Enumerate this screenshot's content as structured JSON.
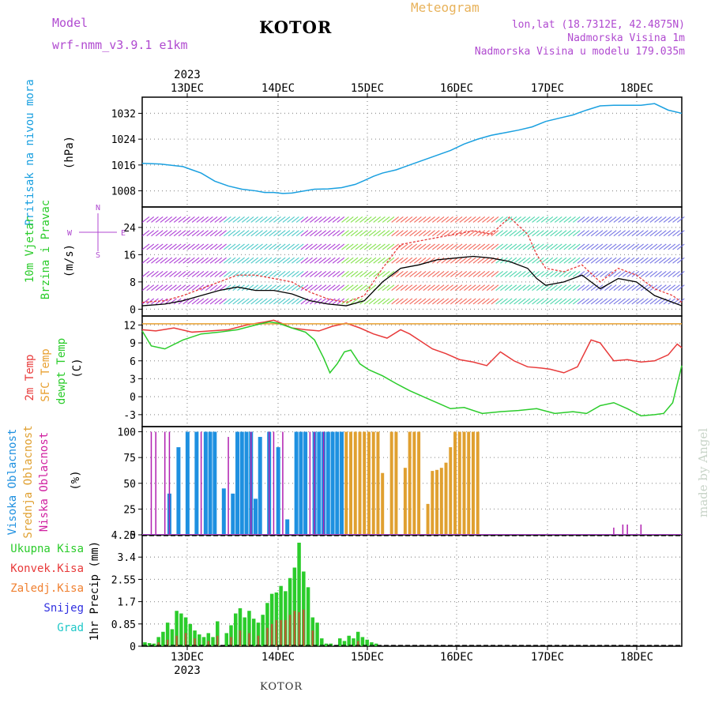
{
  "header": {
    "title": "KOTOR",
    "model_label": "Model",
    "model_name": "wrf-nmm_v3.9.1 e1km",
    "chart_name": "Meteogram",
    "lonlat": "lon,lat (18.7312E, 42.4875N)",
    "elevation": "Nadmorska Visina 1m",
    "model_elevation": "Nadmorska Visina u modelu 179.035m"
  },
  "footer": {
    "location": "KOTOR",
    "credit": "made by Angel"
  },
  "colors": {
    "pressure": "#1aa0e0",
    "temp2m": "#e83a3a",
    "sfc_temp": "#e8a030",
    "dewpt": "#2bcc2b",
    "high_cloud": "#1e90e0",
    "mid_cloud": "#e0a030",
    "low_cloud": "#b020b0",
    "total_precip": "#2bcc2b",
    "conv_precip": "#e83a3a",
    "frz_precip": "#f08030",
    "snow": "#3030e0",
    "hail": "#20c8c8",
    "wind_line": "#000000",
    "gust_line": "#e83a3a"
  },
  "chart_data": [
    {
      "type": "line",
      "panel": "pressure",
      "ylabel": [
        "Pritisak na nivou mora",
        "(hPa)"
      ],
      "yticks": [
        1008,
        1016,
        1024,
        1032
      ],
      "ylim": [
        1003,
        1037
      ],
      "xlim": [
        -0.45,
        5.5
      ],
      "x_top_labels": [
        "13DEC",
        "14DEC",
        "15DEC",
        "16DEC",
        "17DEC",
        "18DEC"
      ],
      "x_top_year": "2023",
      "grid": true,
      "series": [
        {
          "x": [
            -0.45,
            -0.25,
            0,
            0.1,
            0.2,
            0.35,
            0.5,
            0.65,
            0.8,
            0.9,
            1.0,
            1.1,
            1.2,
            1.3,
            1.45,
            1.6,
            1.75,
            1.9,
            2.0,
            2.1,
            2.2,
            2.35,
            2.5,
            2.65,
            2.8,
            2.95,
            3.1,
            3.25,
            3.4,
            3.55,
            3.7,
            3.85,
            4.0,
            4.15,
            4.3,
            4.45,
            4.6,
            4.75,
            4.9,
            5.05,
            5.2,
            5.35,
            5.5
          ],
          "values": [
            1016.5,
            1016.3,
            1015.5,
            1014.5,
            1013.5,
            1011,
            1009.5,
            1008.5,
            1008,
            1007.5,
            1007.5,
            1007.2,
            1007.3,
            1007.8,
            1008.5,
            1008.6,
            1009,
            1010,
            1011.2,
            1012.5,
            1013.5,
            1014.5,
            1016,
            1017.5,
            1019,
            1020.5,
            1022.5,
            1024,
            1025.2,
            1026,
            1026.8,
            1027.8,
            1029.5,
            1030.5,
            1031.5,
            1033,
            1034.3,
            1034.5,
            1034.5,
            1034.5,
            1035,
            1033,
            1032
          ]
        }
      ]
    },
    {
      "type": "line",
      "panel": "wind",
      "ylabel": [
        "10m Vjetar",
        "Brzina i Pravac",
        "(m/s)"
      ],
      "direction_legend": [
        "N",
        "W",
        "E",
        "S"
      ],
      "yticks": [
        0,
        8,
        16,
        24
      ],
      "ylim": [
        -2,
        30
      ],
      "xlim": [
        -0.45,
        5.5
      ],
      "grid": true,
      "series": [
        {
          "name": "wind speed",
          "x": [
            -0.45,
            -0.2,
            0,
            0.2,
            0.4,
            0.6,
            0.8,
            1.0,
            1.2,
            1.4,
            1.6,
            1.8,
            2.0,
            2.2,
            2.4,
            2.6,
            2.8,
            3.0,
            3.2,
            3.4,
            3.6,
            3.8,
            3.9,
            4.0,
            4.2,
            4.4,
            4.6,
            4.8,
            5.0,
            5.2,
            5.4,
            5.5
          ],
          "values": [
            1,
            1.5,
            2.5,
            4,
            5.5,
            6.5,
            5.5,
            5.5,
            4.5,
            2.5,
            1.5,
            1,
            2.5,
            8,
            12,
            13,
            14.5,
            15,
            15.5,
            15,
            14,
            12,
            9,
            7,
            8,
            10,
            6,
            9,
            8,
            4,
            2,
            1
          ]
        },
        {
          "name": "wind gust",
          "x": [
            -0.45,
            -0.2,
            0,
            0.2,
            0.4,
            0.6,
            0.8,
            1.0,
            1.2,
            1.4,
            1.6,
            1.8,
            2.0,
            2.2,
            2.4,
            2.6,
            2.8,
            3.0,
            3.2,
            3.4,
            3.6,
            3.8,
            3.9,
            4.0,
            4.2,
            4.4,
            4.6,
            4.8,
            5.0,
            5.2,
            5.4,
            5.5
          ],
          "values": [
            2,
            2.5,
            4,
            6,
            8,
            10,
            10,
            9,
            8,
            5,
            3,
            2,
            4,
            12,
            19,
            20,
            21,
            22,
            23,
            22,
            27,
            22,
            16,
            12,
            11,
            13,
            8,
            12,
            10,
            6,
            4,
            2
          ]
        }
      ]
    },
    {
      "type": "line",
      "panel": "temperature",
      "ylabel": [
        "2m Temp",
        "SFC Temp",
        "dewpt Temp",
        "(C)"
      ],
      "yticks": [
        -3,
        0,
        3,
        6,
        9,
        12
      ],
      "ylim": [
        -5,
        13.5
      ],
      "xlim": [
        -0.45,
        5.5
      ],
      "grid": true,
      "series": [
        {
          "name": "2m Temp",
          "x": [
            -0.45,
            -0.3,
            -0.1,
            0.1,
            0.3,
            0.5,
            0.7,
            0.9,
            1.0,
            1.1,
            1.2,
            1.35,
            1.5,
            1.65,
            1.8,
            1.95,
            2.1,
            2.25,
            2.4,
            2.5,
            2.6,
            2.75,
            2.9,
            3.05,
            3.2,
            3.35,
            3.5,
            3.65,
            3.8,
            3.95,
            4.05,
            4.2,
            4.35,
            4.5,
            4.6,
            4.75,
            4.9,
            5.05,
            5.2,
            5.35,
            5.45,
            5.5
          ],
          "values": [
            11.2,
            11.0,
            11.5,
            10.8,
            11.0,
            11.2,
            12.0,
            12.5,
            12.8,
            12.2,
            11.5,
            11.2,
            11.0,
            11.8,
            12.3,
            11.5,
            10.5,
            9.8,
            11.2,
            10.5,
            9.5,
            8.0,
            7.2,
            6.2,
            5.8,
            5.2,
            7.5,
            6.0,
            5.0,
            4.8,
            4.6,
            4.0,
            5.0,
            9.5,
            9.0,
            6.0,
            6.2,
            5.8,
            6.0,
            7.0,
            8.8,
            8.2
          ]
        },
        {
          "name": "SFC Temp",
          "x": [
            -0.45,
            5.5
          ],
          "values": [
            12.2,
            12.2
          ]
        },
        {
          "name": "dewpt Temp",
          "x": [
            -0.45,
            -0.35,
            -0.2,
            0,
            0.2,
            0.4,
            0.6,
            0.8,
            0.95,
            1.05,
            1.2,
            1.35,
            1.45,
            1.55,
            1.62,
            1.7,
            1.78,
            1.85,
            1.95,
            2.05,
            2.2,
            2.35,
            2.5,
            2.65,
            2.8,
            2.95,
            3.1,
            3.3,
            3.5,
            3.7,
            3.9,
            4.1,
            4.3,
            4.45,
            4.6,
            4.75,
            4.9,
            5.05,
            5.2,
            5.3,
            5.4,
            5.5
          ],
          "values": [
            11.0,
            8.5,
            8.0,
            9.5,
            10.5,
            10.8,
            11.2,
            12.0,
            12.5,
            12.3,
            11.5,
            10.8,
            9.5,
            6.5,
            4.0,
            5.5,
            7.5,
            7.8,
            5.5,
            4.5,
            3.5,
            2.2,
            1.0,
            0.0,
            -1.0,
            -2.0,
            -1.8,
            -2.8,
            -2.5,
            -2.3,
            -2.0,
            -2.8,
            -2.5,
            -2.8,
            -1.5,
            -1.0,
            -2.0,
            -3.2,
            -3.0,
            -2.8,
            -1.0,
            5.2
          ]
        }
      ]
    },
    {
      "type": "bar",
      "panel": "cloud",
      "ylabel": [
        "Visoka Oblacnost",
        "Srednja Oblacnost",
        "Niska Oblacnost",
        "(%)"
      ],
      "yticks": [
        0,
        25,
        50,
        75,
        100
      ],
      "ylim": [
        0,
        105
      ],
      "xlim": [
        -0.45,
        5.5
      ],
      "grid": true,
      "series": [
        {
          "name": "Visoka Oblacnost",
          "x": [
            -0.15,
            -0.05,
            0.05,
            0.15,
            0.25,
            0.3,
            0.35,
            0.45,
            0.55,
            0.6,
            0.65,
            0.7,
            0.75,
            0.8,
            0.85,
            0.95,
            1.05,
            1.15,
            1.25,
            1.3,
            1.35,
            1.45,
            1.5,
            1.55,
            1.6,
            1.65,
            1.7,
            1.75
          ],
          "values": [
            40,
            85,
            100,
            100,
            100,
            100,
            100,
            45,
            40,
            100,
            100,
            100,
            100,
            35,
            95,
            100,
            85,
            15,
            100,
            100,
            100,
            100,
            100,
            100,
            100,
            100,
            100,
            100
          ]
        },
        {
          "name": "Srednja Oblacnost",
          "x": [
            1.8,
            1.85,
            1.9,
            1.95,
            2.0,
            2.05,
            2.1,
            2.15,
            2.2,
            2.3,
            2.35,
            2.45,
            2.5,
            2.55,
            2.6,
            2.7,
            2.75,
            2.8,
            2.85,
            2.9,
            2.95,
            3.0,
            3.05,
            3.1,
            3.15,
            3.2,
            3.25
          ],
          "values": [
            100,
            100,
            100,
            100,
            100,
            100,
            100,
            100,
            60,
            100,
            100,
            65,
            100,
            100,
            100,
            30,
            62,
            63,
            65,
            70,
            85,
            100,
            100,
            100,
            100,
            100,
            100
          ]
        },
        {
          "name": "Niska Oblacnost",
          "x": [
            -0.35,
            -0.3,
            -0.2,
            -0.15,
            0.2,
            0.5,
            0.75,
            0.95,
            1.0,
            1.1,
            1.4,
            1.45,
            1.55,
            4.75,
            4.85,
            4.9,
            5.05
          ],
          "values": [
            100,
            100,
            100,
            100,
            100,
            95,
            100,
            100,
            100,
            100,
            100,
            100,
            100,
            7,
            10,
            10,
            10
          ]
        }
      ]
    },
    {
      "type": "bar",
      "panel": "precipitation",
      "ylabel": [
        "1hr Precip (mm)"
      ],
      "legend": [
        "Ukupna Kisa",
        "Konvek.Kisa",
        "Zaledj.Kisa",
        "Snijeg",
        "Grad"
      ],
      "yticks": [
        0,
        0.85,
        1.7,
        2.55,
        3.4,
        4.25
      ],
      "ylim": [
        0,
        4.25
      ],
      "xlim": [
        -0.45,
        5.5
      ],
      "x_bottom_labels": [
        "13DEC",
        "14DEC",
        "15DEC",
        "16DEC",
        "17DEC",
        "18DEC"
      ],
      "x_bottom_year": "2023",
      "grid": true,
      "series": [
        {
          "name": "Ukupna Kisa",
          "x": [
            -0.42,
            -0.37,
            -0.32,
            -0.27,
            -0.22,
            -0.17,
            -0.12,
            -0.07,
            -0.02,
            0.03,
            0.08,
            0.13,
            0.18,
            0.23,
            0.28,
            0.33,
            0.38,
            0.48,
            0.53,
            0.58,
            0.63,
            0.68,
            0.73,
            0.78,
            0.83,
            0.88,
            0.93,
            0.98,
            1.03,
            1.08,
            1.13,
            1.18,
            1.23,
            1.28,
            1.33,
            1.38,
            1.43,
            1.48,
            1.53,
            1.58,
            1.63,
            1.73,
            1.78,
            1.83,
            1.88,
            1.93,
            1.98,
            2.03,
            2.08,
            2.13
          ],
          "values": [
            0.15,
            0.12,
            0.1,
            0.35,
            0.55,
            0.9,
            0.65,
            1.35,
            1.25,
            1.1,
            0.85,
            0.6,
            0.45,
            0.35,
            0.5,
            0.35,
            0.95,
            0.5,
            0.8,
            1.25,
            1.45,
            1.1,
            1.35,
            1.05,
            0.9,
            1.2,
            1.65,
            2.0,
            2.05,
            2.3,
            2.1,
            2.6,
            3.0,
            3.95,
            2.85,
            2.25,
            1.1,
            0.9,
            0.3,
            0.1,
            0.1,
            0.3,
            0.2,
            0.4,
            0.3,
            0.55,
            0.35,
            0.25,
            0.15,
            0.1
          ]
        },
        {
          "name": "Konvek.Kisa",
          "x": [
            -0.27,
            -0.17,
            -0.07,
            0.03,
            0.13,
            0.28,
            0.38,
            0.53,
            0.63,
            0.73,
            0.83,
            0.93,
            0.98,
            1.03,
            1.08,
            1.13,
            1.18,
            1.23,
            1.28,
            1.33,
            1.43,
            1.93
          ],
          "values": [
            0.15,
            0.25,
            0.4,
            0.5,
            0.3,
            0.2,
            0.4,
            0.35,
            0.6,
            0.5,
            0.4,
            0.7,
            0.85,
            1.0,
            1.0,
            1.0,
            1.2,
            1.35,
            1.3,
            1.4,
            0.6,
            0.2
          ]
        }
      ]
    }
  ]
}
